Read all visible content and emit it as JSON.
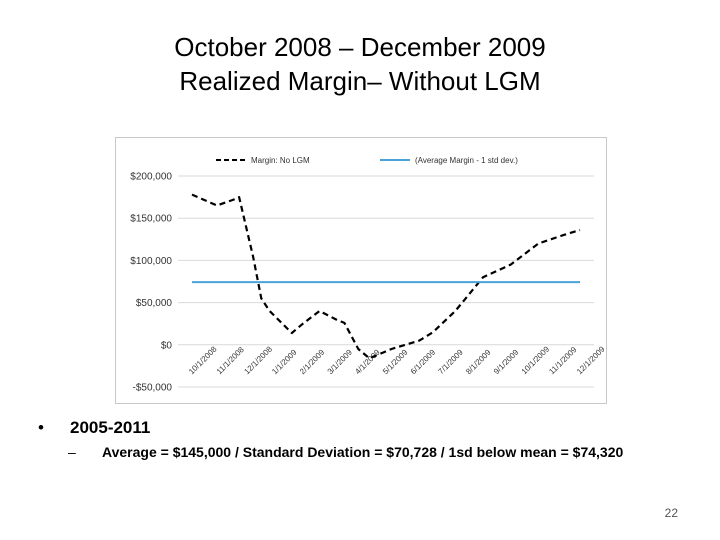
{
  "slide": {
    "title_line1": "October 2008 – December 2009",
    "title_line2": "Realized Margin– Without LGM",
    "bullet": "2005-2011",
    "sub_bullet": "Average = $145,000 / Standard Deviation = $70,728 / 1sd below mean = $74,320",
    "page_number": "22",
    "bullet_glyph": "•",
    "dash_glyph": "–"
  },
  "chart_data": {
    "type": "line",
    "title": "",
    "xlabel": "",
    "ylabel": "",
    "ylim": [
      -50000,
      200000
    ],
    "yticks": [
      -50000,
      0,
      50000,
      100000,
      150000,
      200000
    ],
    "ytick_labels": [
      "-$50,000",
      "$0",
      "$50,000",
      "$100,000",
      "$150,000",
      "$200,000"
    ],
    "grid": true,
    "legend_position": "top",
    "x_tick_labels": [
      "10/1/2008",
      "11/1/2008",
      "12/1/2008",
      "1/1/2009",
      "2/1/2009",
      "3/1/2009",
      "4/1/2009",
      "5/1/2009",
      "6/1/2009",
      "7/1/2009",
      "8/1/2009",
      "9/1/2009",
      "10/1/2009",
      "11/1/2009",
      "12/1/2009"
    ],
    "series": [
      {
        "name": "Margin: No LGM",
        "style": "dashed",
        "color": "#000000",
        "points": [
          [
            0,
            178000
          ],
          [
            0.9,
            165000
          ],
          [
            1.5,
            172000
          ],
          [
            1.7,
            175000
          ],
          [
            2.2,
            105000
          ],
          [
            2.5,
            55000
          ],
          [
            2.8,
            40000
          ],
          [
            3.6,
            14000
          ],
          [
            4.0,
            25000
          ],
          [
            4.6,
            40000
          ],
          [
            5.2,
            30000
          ],
          [
            5.5,
            26000
          ],
          [
            6.0,
            -5000
          ],
          [
            6.4,
            -16000
          ],
          [
            7.2,
            -5000
          ],
          [
            7.7,
            0
          ],
          [
            8.2,
            5000
          ],
          [
            8.7,
            15000
          ],
          [
            9.5,
            40000
          ],
          [
            10.5,
            80000
          ],
          [
            11.5,
            95000
          ],
          [
            12.5,
            120000
          ],
          [
            13.4,
            130000
          ],
          [
            14.0,
            136000
          ]
        ]
      },
      {
        "name": "(Average Margin - 1 std dev.)",
        "style": "solid",
        "color": "#4aa3d8",
        "points": [
          [
            0,
            74320
          ],
          [
            14,
            74320
          ]
        ]
      }
    ]
  }
}
